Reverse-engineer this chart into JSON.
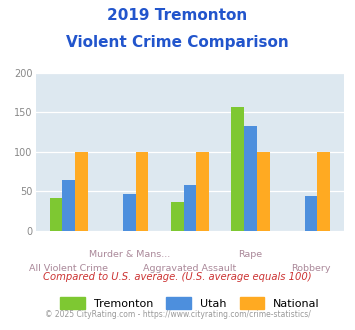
{
  "title_line1": "2019 Tremonton",
  "title_line2": "Violent Crime Comparison",
  "row1_labels": [
    "",
    "Murder & Mans...",
    "",
    "Rape",
    ""
  ],
  "row2_labels": [
    "All Violent Crime",
    "",
    "Aggravated Assault",
    "",
    "Robbery"
  ],
  "tremonton": [
    42,
    0,
    36,
    157,
    0
  ],
  "utah": [
    65,
    47,
    58,
    133,
    44
  ],
  "national": [
    100,
    100,
    100,
    100,
    100
  ],
  "tremonton_color": "#7ec832",
  "utah_color": "#4d8fdd",
  "national_color": "#ffaa22",
  "ylim": [
    0,
    200
  ],
  "yticks": [
    0,
    50,
    100,
    150,
    200
  ],
  "background_color": "#dde8f0",
  "title_color": "#2255cc",
  "xlabel_color": "#aa8899",
  "footer_text": "Compared to U.S. average. (U.S. average equals 100)",
  "copyright_text": "© 2025 CityRating.com - https://www.cityrating.com/crime-statistics/",
  "footer_color": "#cc3333",
  "copyright_color": "#999999",
  "legend_labels": [
    "Tremonton",
    "Utah",
    "National"
  ]
}
